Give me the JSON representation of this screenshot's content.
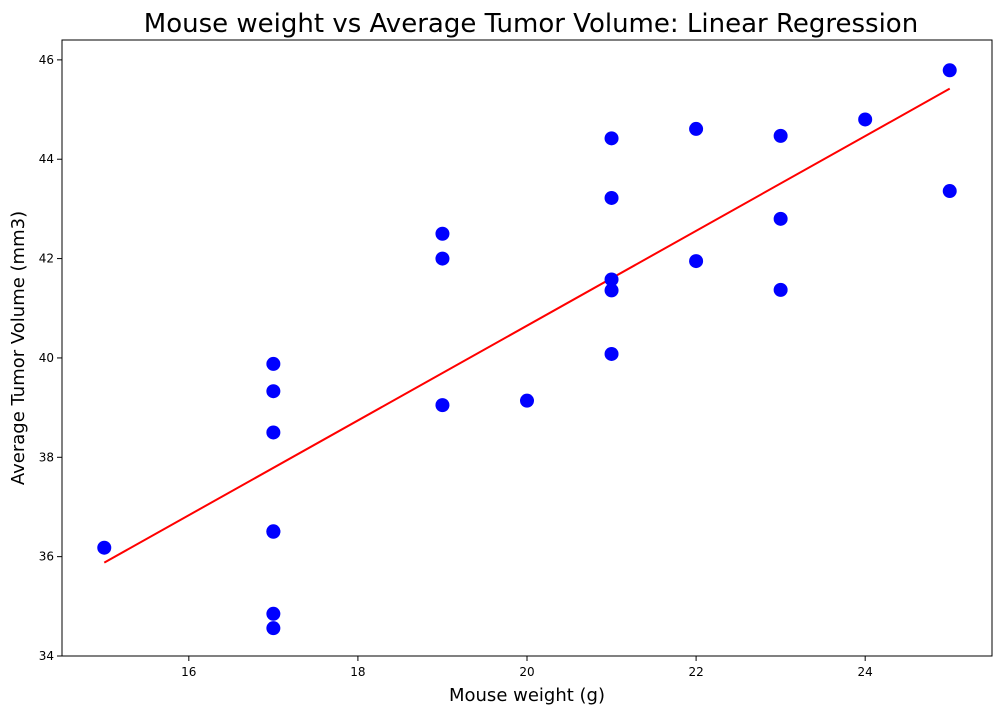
{
  "chart_data": {
    "type": "scatter",
    "title": "Mouse weight vs Average Tumor Volume: Linear Regression",
    "xlabel": "Mouse weight (g)",
    "ylabel": "Average Tumor Volume (mm3)",
    "xlim": [
      14.5,
      25.5
    ],
    "ylim": [
      34,
      46.4
    ],
    "xticks": [
      16,
      18,
      20,
      22,
      24
    ],
    "yticks": [
      34,
      36,
      38,
      40,
      42,
      44,
      46
    ],
    "grid": false,
    "series": [
      {
        "kind": "scatter",
        "color": "#0000ff",
        "points": [
          {
            "x": 15,
            "y": 36.18
          },
          {
            "x": 17,
            "y": 39.88
          },
          {
            "x": 17,
            "y": 39.33
          },
          {
            "x": 17,
            "y": 38.5
          },
          {
            "x": 17,
            "y": 36.51
          },
          {
            "x": 17,
            "y": 36.5
          },
          {
            "x": 17,
            "y": 34.85
          },
          {
            "x": 17,
            "y": 34.56
          },
          {
            "x": 19,
            "y": 42.5
          },
          {
            "x": 19,
            "y": 42.0
          },
          {
            "x": 19,
            "y": 39.05
          },
          {
            "x": 20,
            "y": 39.14
          },
          {
            "x": 21,
            "y": 44.42
          },
          {
            "x": 21,
            "y": 43.22
          },
          {
            "x": 21,
            "y": 41.58
          },
          {
            "x": 21,
            "y": 41.36
          },
          {
            "x": 21,
            "y": 40.08
          },
          {
            "x": 22,
            "y": 44.61
          },
          {
            "x": 22,
            "y": 41.95
          },
          {
            "x": 23,
            "y": 44.47
          },
          {
            "x": 23,
            "y": 42.8
          },
          {
            "x": 23,
            "y": 41.37
          },
          {
            "x": 24,
            "y": 44.8
          },
          {
            "x": 25,
            "y": 45.79
          },
          {
            "x": 25,
            "y": 43.36
          }
        ]
      },
      {
        "kind": "line",
        "color": "#ff0000",
        "points": [
          {
            "x": 15,
            "y": 35.88
          },
          {
            "x": 25,
            "y": 45.42
          }
        ]
      }
    ]
  }
}
